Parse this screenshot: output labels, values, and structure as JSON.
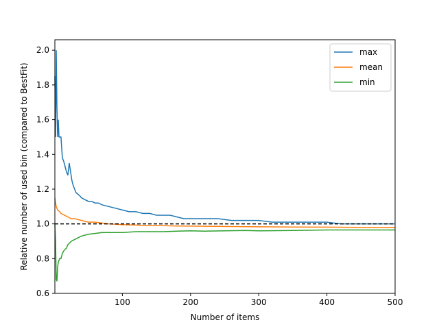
{
  "chart_data": {
    "type": "line",
    "title": "",
    "xlabel": "Number of items",
    "ylabel": "Relative number of used bin (compared to BestFit)",
    "xlim": [
      1,
      500
    ],
    "ylim": [
      0.6,
      2.06
    ],
    "xticks": [
      100,
      200,
      300,
      400,
      500
    ],
    "xtick_labels": [
      "100",
      "200",
      "300",
      "400",
      "500"
    ],
    "yticks": [
      0.6,
      0.8,
      1.0,
      1.2,
      1.4,
      1.6,
      1.8,
      2.0
    ],
    "ytick_labels": [
      "0.6",
      "0.8",
      "1.0",
      "1.2",
      "1.4",
      "1.6",
      "1.8",
      "2.0"
    ],
    "grid": false,
    "legend_position": "top-right",
    "reference_line": {
      "y": 1.0,
      "style": "dashed",
      "color": "#000000"
    },
    "series": [
      {
        "name": "max",
        "color": "#1f77b4",
        "x": [
          1,
          2,
          3,
          4,
          5,
          6,
          7,
          8,
          9,
          10,
          12,
          14,
          16,
          18,
          20,
          22,
          24,
          26,
          28,
          30,
          32,
          35,
          38,
          40,
          45,
          50,
          55,
          60,
          65,
          70,
          80,
          90,
          100,
          110,
          120,
          130,
          140,
          150,
          160,
          170,
          180,
          190,
          200,
          220,
          240,
          260,
          280,
          300,
          320,
          340,
          360,
          380,
          400,
          420,
          440,
          460,
          480,
          500
        ],
        "y": [
          1.85,
          1.5,
          2.0,
          1.67,
          1.5,
          1.6,
          1.5,
          1.5,
          1.5,
          1.5,
          1.38,
          1.36,
          1.33,
          1.3,
          1.28,
          1.35,
          1.3,
          1.25,
          1.22,
          1.2,
          1.18,
          1.17,
          1.16,
          1.15,
          1.14,
          1.13,
          1.13,
          1.12,
          1.12,
          1.11,
          1.1,
          1.09,
          1.08,
          1.07,
          1.07,
          1.06,
          1.06,
          1.05,
          1.05,
          1.05,
          1.04,
          1.03,
          1.03,
          1.03,
          1.03,
          1.02,
          1.02,
          1.02,
          1.01,
          1.01,
          1.01,
          1.01,
          1.01,
          1.0,
          1.0,
          1.0,
          1.0,
          1.0
        ]
      },
      {
        "name": "mean",
        "color": "#ff7f0e",
        "x": [
          1,
          2,
          3,
          5,
          8,
          10,
          15,
          20,
          25,
          30,
          40,
          50,
          60,
          70,
          80,
          90,
          100,
          120,
          140,
          160,
          180,
          200,
          250,
          300,
          350,
          400,
          450,
          500
        ],
        "y": [
          1.15,
          1.12,
          1.1,
          1.08,
          1.07,
          1.06,
          1.05,
          1.04,
          1.03,
          1.03,
          1.02,
          1.01,
          1.01,
          1.005,
          1.0,
          0.998,
          0.995,
          0.993,
          0.99,
          0.99,
          0.988,
          0.987,
          0.985,
          0.983,
          0.982,
          0.981,
          0.98,
          0.98
        ]
      },
      {
        "name": "min",
        "color": "#2ca02c",
        "x": [
          1,
          2,
          3,
          4,
          5,
          6,
          8,
          10,
          12,
          15,
          18,
          20,
          25,
          30,
          35,
          40,
          50,
          60,
          70,
          80,
          90,
          100,
          120,
          140,
          160,
          180,
          200,
          220,
          250,
          280,
          300,
          350,
          400,
          450,
          500
        ],
        "y": [
          1.0,
          0.9,
          0.68,
          0.67,
          0.75,
          0.78,
          0.8,
          0.8,
          0.83,
          0.85,
          0.86,
          0.88,
          0.9,
          0.91,
          0.92,
          0.93,
          0.94,
          0.945,
          0.95,
          0.95,
          0.95,
          0.95,
          0.955,
          0.955,
          0.955,
          0.958,
          0.96,
          0.958,
          0.96,
          0.962,
          0.96,
          0.962,
          0.965,
          0.965,
          0.965
        ]
      }
    ]
  }
}
